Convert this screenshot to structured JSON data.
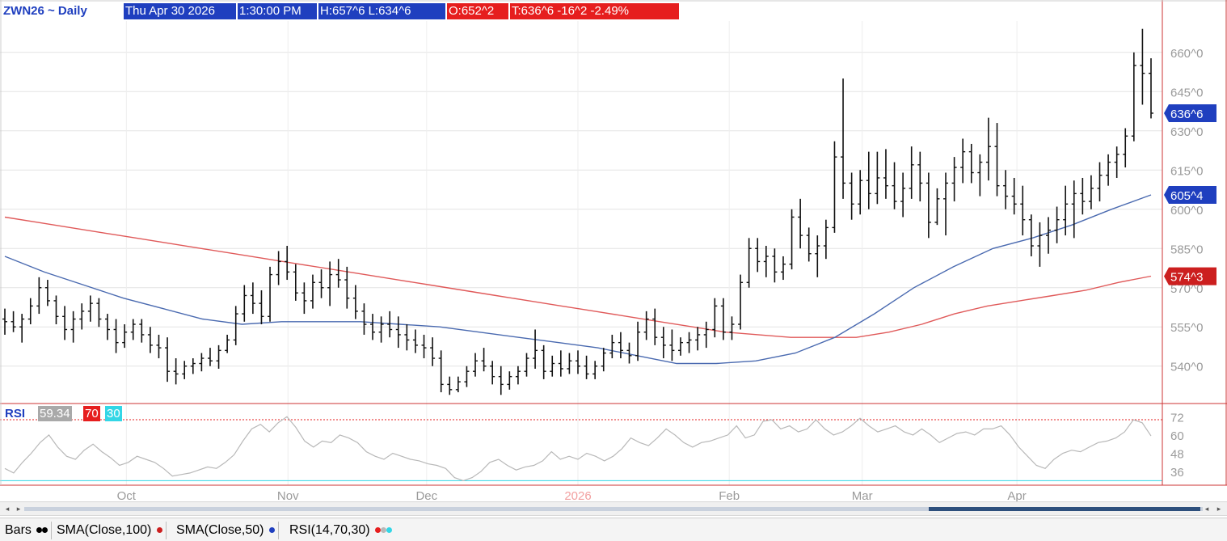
{
  "header": {
    "symbol": "ZWN26 ~ Daily",
    "datetime": "Thu Apr 30 2026",
    "time": "1:30:00 PM",
    "high_low": "H:657^6   L:634^6",
    "open": "O:652^2",
    "trade": "T:636^6  -16^2  -2.49%"
  },
  "chart_data": {
    "type": "ohlc-bar",
    "y_axis_ticks": [
      "660^0",
      "645^0",
      "630^0",
      "615^0",
      "600^0",
      "585^0",
      "570^0",
      "555^0",
      "540^0"
    ],
    "ylim": [
      526,
      672
    ],
    "x_labels": [
      "Oct",
      "Nov",
      "Dec",
      "2026",
      "Feb",
      "Mar",
      "Apr"
    ],
    "price_badges": [
      {
        "label": "636^6",
        "value": 636.75,
        "color": "#1f3fbf"
      },
      {
        "label": "605^4",
        "value": 605.5,
        "color": "#1f3fbf"
      },
      {
        "label": "574^3",
        "value": 574.375,
        "color": "#cc1f1f"
      }
    ],
    "series": [
      {
        "name": "SMA(Close,100)",
        "color": "#e05a5a",
        "values": [
          597,
          595,
          593,
          591,
          589,
          587,
          585,
          583,
          581,
          579,
          577,
          575,
          573,
          571,
          569,
          567,
          565,
          563,
          561,
          559,
          557,
          555,
          553,
          552,
          551,
          551,
          551,
          553,
          556,
          560,
          563,
          565,
          567,
          569,
          572,
          574.4
        ]
      },
      {
        "name": "SMA(Close,50)",
        "color": "#4a6ab0",
        "values": [
          582,
          576,
          571,
          566,
          562,
          558,
          556,
          557,
          557,
          557,
          556,
          555,
          553,
          551,
          549,
          547,
          544,
          541,
          541,
          542,
          545,
          551,
          560,
          570,
          578,
          585,
          589,
          594,
          600,
          605.5
        ]
      }
    ],
    "ohlc": [
      [
        558,
        562,
        552,
        557
      ],
      [
        557,
        561,
        553,
        555
      ],
      [
        555,
        560,
        549,
        558
      ],
      [
        558,
        566,
        556,
        563
      ],
      [
        563,
        574,
        560,
        570
      ],
      [
        570,
        573,
        563,
        565
      ],
      [
        565,
        567,
        556,
        559
      ],
      [
        559,
        563,
        550,
        554
      ],
      [
        554,
        561,
        549,
        558
      ],
      [
        558,
        564,
        554,
        561
      ],
      [
        561,
        567,
        557,
        564
      ],
      [
        564,
        566,
        555,
        558
      ],
      [
        558,
        560,
        550,
        554
      ],
      [
        554,
        558,
        545,
        549
      ],
      [
        549,
        556,
        547,
        553
      ],
      [
        553,
        558,
        550,
        556
      ],
      [
        556,
        558,
        549,
        552
      ],
      [
        552,
        555,
        545,
        548
      ],
      [
        548,
        552,
        543,
        547
      ],
      [
        547,
        551,
        534,
        538
      ],
      [
        538,
        543,
        533,
        537
      ],
      [
        537,
        542,
        535,
        540
      ],
      [
        540,
        543,
        537,
        541
      ],
      [
        541,
        545,
        538,
        543
      ],
      [
        543,
        547,
        540,
        542
      ],
      [
        542,
        548,
        539,
        546
      ],
      [
        546,
        552,
        545,
        550
      ],
      [
        550,
        563,
        548,
        560
      ],
      [
        560,
        571,
        557,
        567
      ],
      [
        567,
        572,
        560,
        564
      ],
      [
        564,
        569,
        556,
        559
      ],
      [
        559,
        578,
        557,
        575
      ],
      [
        575,
        584,
        571,
        580
      ],
      [
        580,
        586,
        573,
        576
      ],
      [
        576,
        579,
        565,
        568
      ],
      [
        568,
        572,
        560,
        565
      ],
      [
        565,
        575,
        562,
        572
      ],
      [
        572,
        577,
        566,
        570
      ],
      [
        570,
        580,
        563,
        575
      ],
      [
        575,
        581,
        570,
        573
      ],
      [
        573,
        578,
        562,
        566
      ],
      [
        566,
        571,
        558,
        561
      ],
      [
        561,
        564,
        552,
        556
      ],
      [
        556,
        560,
        550,
        553
      ],
      [
        553,
        559,
        549,
        556
      ],
      [
        556,
        561,
        551,
        554
      ],
      [
        554,
        559,
        547,
        552
      ],
      [
        552,
        556,
        546,
        550
      ],
      [
        550,
        554,
        545,
        548
      ],
      [
        548,
        552,
        543,
        547
      ],
      [
        547,
        551,
        540,
        543
      ],
      [
        543,
        546,
        530,
        533
      ],
      [
        533,
        536,
        529,
        531
      ],
      [
        531,
        536,
        530,
        534
      ],
      [
        534,
        540,
        532,
        538
      ],
      [
        538,
        545,
        536,
        542
      ],
      [
        542,
        547,
        538,
        540
      ],
      [
        540,
        542,
        533,
        536
      ],
      [
        536,
        540,
        529,
        533
      ],
      [
        533,
        538,
        531,
        536
      ],
      [
        536,
        540,
        533,
        538
      ],
      [
        538,
        545,
        536,
        543
      ],
      [
        543,
        554,
        539,
        546
      ],
      [
        546,
        548,
        535,
        538
      ],
      [
        538,
        544,
        536,
        541
      ],
      [
        541,
        546,
        536,
        539
      ],
      [
        539,
        545,
        537,
        542
      ],
      [
        542,
        546,
        537,
        540
      ],
      [
        540,
        544,
        535,
        537
      ],
      [
        537,
        542,
        535,
        540
      ],
      [
        540,
        547,
        538,
        545
      ],
      [
        545,
        552,
        543,
        549
      ],
      [
        549,
        553,
        543,
        546
      ],
      [
        546,
        549,
        541,
        544
      ],
      [
        544,
        557,
        542,
        553
      ],
      [
        553,
        561,
        550,
        558
      ],
      [
        558,
        562,
        548,
        551
      ],
      [
        551,
        555,
        543,
        548
      ],
      [
        548,
        554,
        542,
        546
      ],
      [
        546,
        551,
        544,
        549
      ],
      [
        549,
        553,
        545,
        550
      ],
      [
        550,
        555,
        546,
        552
      ],
      [
        552,
        557,
        547,
        554
      ],
      [
        554,
        566,
        551,
        563
      ],
      [
        563,
        566,
        550,
        553
      ],
      [
        553,
        559,
        550,
        556
      ],
      [
        556,
        575,
        554,
        572
      ],
      [
        572,
        589,
        570,
        585
      ],
      [
        585,
        589,
        576,
        580
      ],
      [
        580,
        586,
        574,
        582
      ],
      [
        582,
        585,
        572,
        576
      ],
      [
        576,
        582,
        573,
        579
      ],
      [
        579,
        600,
        577,
        597
      ],
      [
        597,
        604,
        585,
        590
      ],
      [
        590,
        593,
        580,
        583
      ],
      [
        583,
        590,
        574,
        586
      ],
      [
        586,
        596,
        581,
        593
      ],
      [
        593,
        626,
        591,
        620
      ],
      [
        620,
        650,
        604,
        610
      ],
      [
        610,
        614,
        596,
        602
      ],
      [
        602,
        615,
        598,
        611
      ],
      [
        611,
        622,
        600,
        606
      ],
      [
        606,
        622,
        602,
        612
      ],
      [
        612,
        623,
        604,
        609
      ],
      [
        609,
        618,
        600,
        603
      ],
      [
        603,
        614,
        597,
        608
      ],
      [
        608,
        624,
        604,
        617
      ],
      [
        617,
        622,
        603,
        610
      ],
      [
        610,
        614,
        589,
        595
      ],
      [
        595,
        608,
        594,
        604
      ],
      [
        604,
        614,
        590,
        610
      ],
      [
        610,
        620,
        603,
        616
      ],
      [
        616,
        627,
        610,
        622
      ],
      [
        622,
        625,
        610,
        614
      ],
      [
        614,
        621,
        605,
        618
      ],
      [
        618,
        635,
        611,
        624
      ],
      [
        624,
        633,
        605,
        609
      ],
      [
        609,
        615,
        600,
        605
      ],
      [
        605,
        612,
        598,
        602
      ],
      [
        602,
        609,
        590,
        596
      ],
      [
        596,
        598,
        582,
        586
      ],
      [
        586,
        595,
        578,
        590
      ],
      [
        590,
        597,
        583,
        592
      ],
      [
        592,
        601,
        587,
        596
      ],
      [
        596,
        609,
        590,
        602
      ],
      [
        602,
        611,
        589,
        606
      ],
      [
        606,
        612,
        598,
        603
      ],
      [
        603,
        613,
        600,
        608
      ],
      [
        608,
        618,
        603,
        613
      ],
      [
        613,
        621,
        609,
        618
      ],
      [
        618,
        624,
        612,
        621
      ],
      [
        621,
        631,
        616,
        628
      ],
      [
        628,
        660,
        626,
        655
      ],
      [
        655,
        669,
        640,
        652
      ],
      [
        652,
        657.75,
        634.75,
        636.75
      ]
    ],
    "rsi": {
      "label": "RSI",
      "value": "59.34",
      "overbought": "70",
      "oversold": "30",
      "y_axis_ticks": [
        "72",
        "60",
        "48",
        "36"
      ],
      "ylim": [
        27,
        78
      ],
      "line_color": "#b8b8b8",
      "values": [
        38,
        35,
        42,
        48,
        55,
        60,
        52,
        46,
        44,
        50,
        54,
        49,
        45,
        40,
        42,
        46,
        44,
        42,
        38,
        33,
        34,
        35,
        37,
        39,
        38,
        42,
        47,
        56,
        64,
        67,
        62,
        68,
        72,
        65,
        56,
        52,
        56,
        55,
        60,
        58,
        55,
        49,
        46,
        44,
        48,
        46,
        44,
        43,
        41,
        40,
        38,
        32,
        30,
        32,
        36,
        42,
        44,
        40,
        37,
        39,
        40,
        43,
        49,
        44,
        46,
        44,
        48,
        46,
        43,
        46,
        51,
        58,
        55,
        53,
        58,
        64,
        60,
        55,
        52,
        55,
        56,
        58,
        60,
        66,
        58,
        60,
        69,
        70,
        64,
        66,
        62,
        64,
        70,
        64,
        60,
        62,
        66,
        71,
        66,
        62,
        64,
        66,
        62,
        60,
        64,
        60,
        55,
        58,
        61,
        62,
        60,
        64,
        64,
        66,
        60,
        52,
        46,
        40,
        38,
        44,
        48,
        50,
        49,
        52,
        55,
        56,
        58,
        62,
        70,
        68,
        59.34
      ]
    }
  },
  "scroll": {
    "left_arrow": "◂",
    "right_arrow": "▸"
  },
  "footer": {
    "bars_label": "Bars",
    "sma100_label": "SMA(Close,100)",
    "sma50_label": "SMA(Close,50)",
    "rsi_label": "RSI(14,70,30)"
  }
}
